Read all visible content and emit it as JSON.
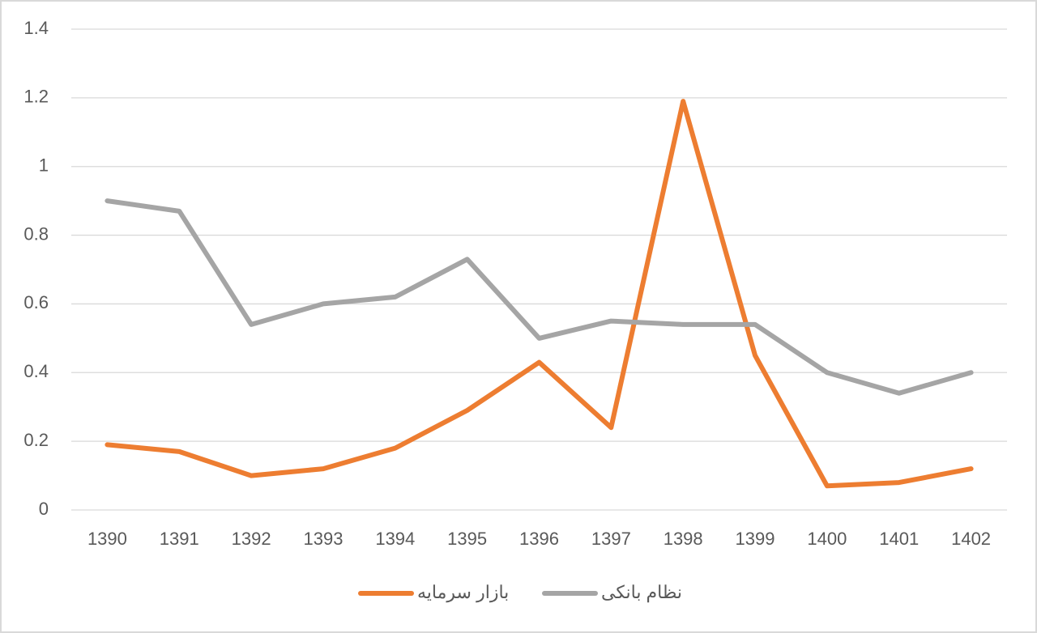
{
  "chart_data": {
    "type": "line",
    "categories": [
      "1390",
      "1391",
      "1392",
      "1393",
      "1394",
      "1395",
      "1396",
      "1397",
      "1398",
      "1399",
      "1400",
      "1401",
      "1402"
    ],
    "series": [
      {
        "name": "بازار سرمایه",
        "color": "#ed7d31",
        "values": [
          0.19,
          0.17,
          0.1,
          0.12,
          0.18,
          0.29,
          0.43,
          0.24,
          1.19,
          0.45,
          0.07,
          0.08,
          0.12
        ]
      },
      {
        "name": "نظام بانکی",
        "color": "#a5a5a5",
        "values": [
          0.9,
          0.87,
          0.54,
          0.6,
          0.62,
          0.73,
          0.5,
          0.55,
          0.54,
          0.54,
          0.4,
          0.34,
          0.4
        ]
      }
    ],
    "ylim": [
      0,
      1.4
    ],
    "yticks": [
      0,
      0.2,
      0.4,
      0.6,
      0.8,
      1,
      1.2,
      1.4
    ],
    "grid": true,
    "legend": "bottom"
  }
}
